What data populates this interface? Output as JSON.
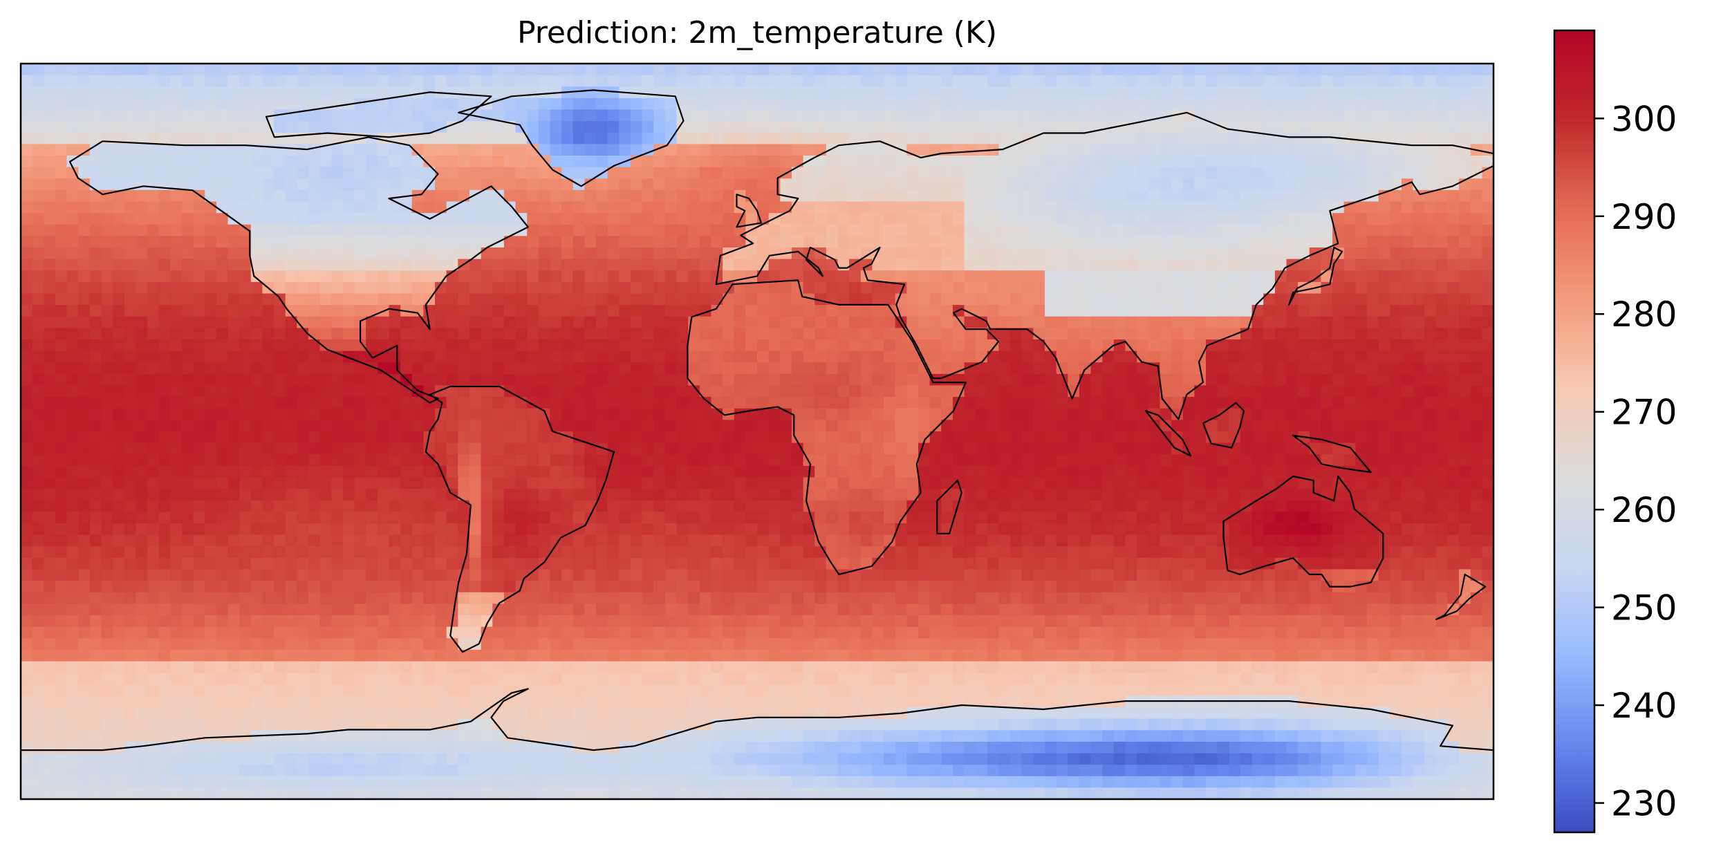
{
  "chart_data": {
    "type": "heatmap",
    "title": "Prediction: 2m_temperature (K)",
    "variable": "2m_temperature",
    "units": "K",
    "projection": "PlateCarree",
    "extent": {
      "lon": [
        -180,
        180
      ],
      "lat": [
        -90,
        90
      ]
    },
    "grid_resolution_deg": 2.8125,
    "colormap": "coolwarm",
    "colormap_stops": [
      "#3b4cc0",
      "#6788ee",
      "#9abbff",
      "#c9d7f0",
      "#dddcdc",
      "#f6c8b2",
      "#f49a7b",
      "#e36a53",
      "#c0282d",
      "#b40426"
    ],
    "colorbar": {
      "vmin": 227,
      "vmax": 309,
      "ticks": [
        230,
        240,
        250,
        260,
        270,
        280,
        290,
        300
      ],
      "tick_labels": [
        "230",
        "240",
        "250",
        "260",
        "270",
        "280",
        "290",
        "300"
      ],
      "orientation": "vertical",
      "position": "right"
    },
    "coastlines": true,
    "features": [
      {
        "region": "Greenland ice sheet",
        "approx_K": 232
      },
      {
        "region": "Siberia",
        "approx_K": 252
      },
      {
        "region": "Canadian Arctic",
        "approx_K": 252
      },
      {
        "region": "East Antarctica",
        "approx_K": 240
      },
      {
        "region": "Tropical Pacific",
        "approx_K": 300
      },
      {
        "region": "Central Australia",
        "approx_K": 308
      },
      {
        "region": "Southern Ocean",
        "approx_K": 275
      }
    ]
  }
}
